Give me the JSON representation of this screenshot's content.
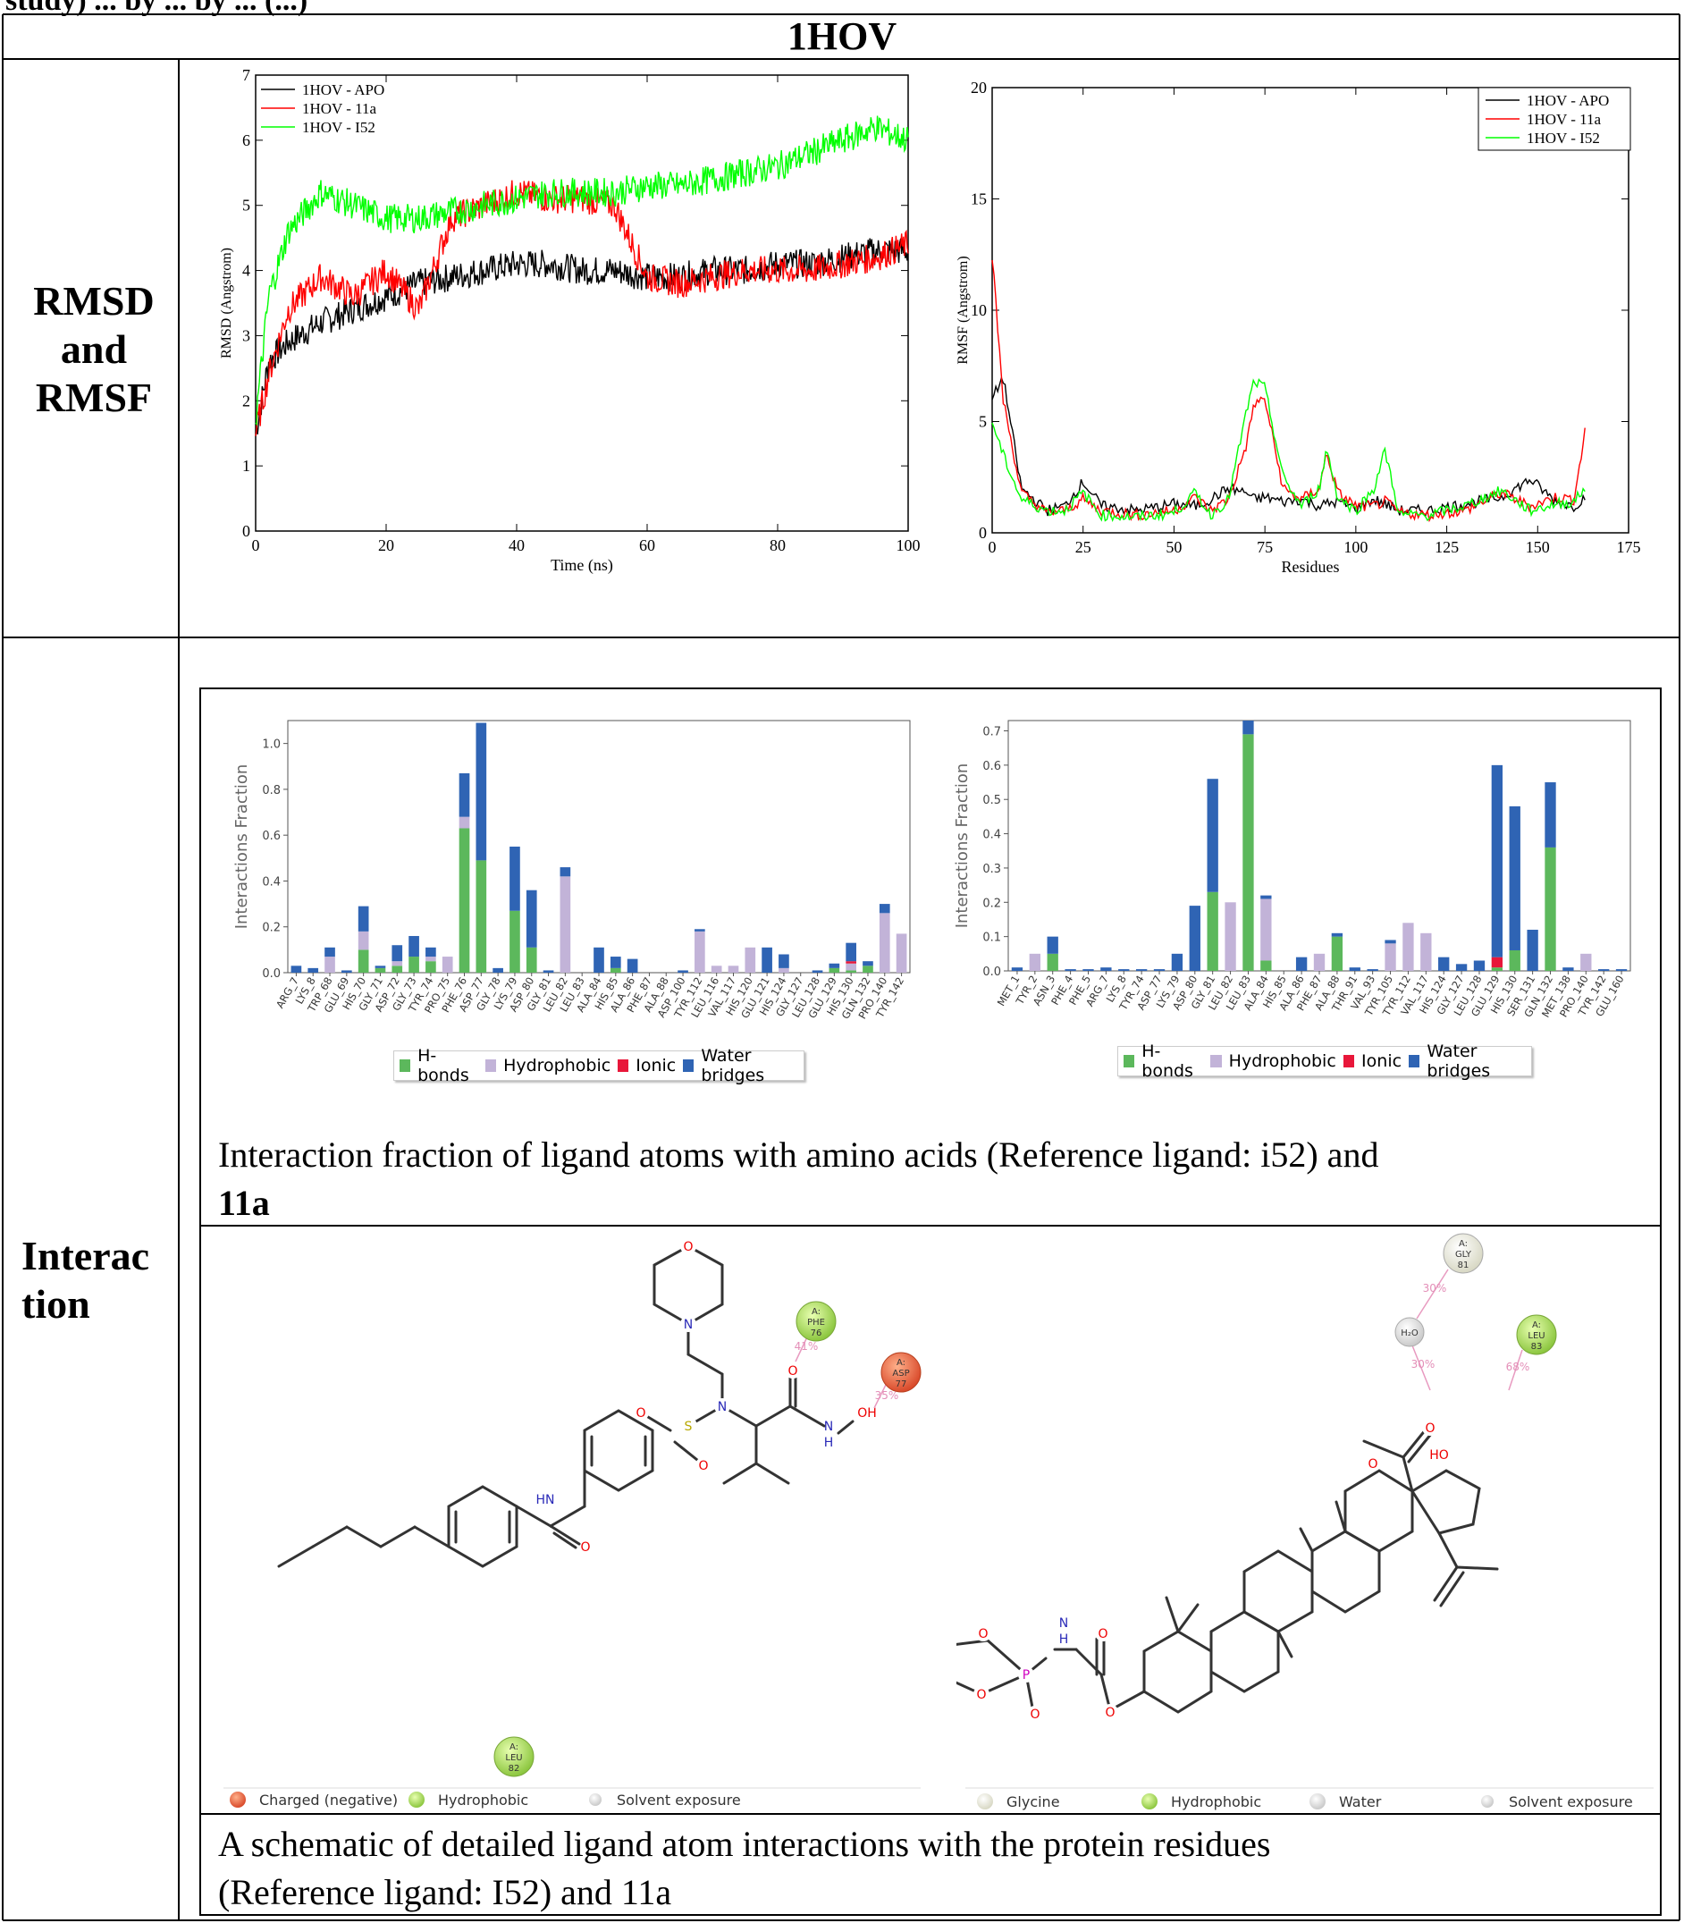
{
  "top_fragment": "study) ... by ... by ... (...)",
  "table": {
    "header": "1HOV",
    "row1_label": "RMSD\nand\nRMSF",
    "row1_label_lines": [
      "RMSD",
      "and",
      "RMSF"
    ],
    "row2_label_lines": [
      "Interac",
      "tion"
    ]
  },
  "rmsd_chart": {
    "type": "line",
    "xlabel": "Time (ns)",
    "ylabel": "RMSD (Angstrom)",
    "xlim": [
      0,
      100
    ],
    "ylim": [
      0,
      7
    ],
    "xticks": [
      0,
      20,
      40,
      60,
      80,
      100
    ],
    "yticks": [
      0,
      1,
      2,
      3,
      4,
      5,
      6,
      7
    ],
    "legend": [
      "1HOV - APO",
      "1HOV - 11a",
      "1HOV - I52"
    ],
    "legend_position": "top-left",
    "series_colors": [
      "#000000",
      "#ff0000",
      "#00ff00"
    ]
  },
  "rmsf_chart": {
    "type": "line",
    "xlabel": "Residues",
    "ylabel": "RMSF (Angstrom)",
    "xlim": [
      0,
      175
    ],
    "ylim": [
      0,
      20
    ],
    "xticks": [
      0,
      25,
      50,
      75,
      100,
      125,
      150,
      175
    ],
    "yticks": [
      0,
      5,
      10,
      15,
      20
    ],
    "legend": [
      "1HOV - APO",
      "1HOV - 11a",
      "1HOV - I52"
    ],
    "legend_position": "top-right",
    "series_colors": [
      "#000000",
      "#ff0000",
      "#00ff00"
    ]
  },
  "chart_data": [
    {
      "type": "line",
      "xlabel": "Time (ns)",
      "ylabel": "RMSD (Angstrom)",
      "xlim": [
        0,
        100
      ],
      "ylim": [
        0,
        7
      ],
      "x": [
        0,
        2,
        5,
        10,
        15,
        20,
        25,
        30,
        35,
        40,
        45,
        50,
        55,
        60,
        65,
        70,
        75,
        80,
        85,
        90,
        95,
        100
      ],
      "series": [
        {
          "name": "1HOV - APO",
          "color": "#000000",
          "values": [
            1.5,
            2.6,
            2.9,
            3.2,
            3.4,
            3.6,
            3.8,
            3.9,
            4.0,
            4.1,
            4.1,
            4.0,
            4.0,
            3.9,
            3.9,
            4.0,
            4.0,
            4.1,
            4.1,
            4.2,
            4.3,
            4.3
          ]
        },
        {
          "name": "1HOV - 11a",
          "color": "#ff0000",
          "values": [
            1.5,
            2.4,
            3.4,
            3.9,
            3.6,
            4.0,
            3.4,
            4.8,
            5.0,
            5.2,
            5.1,
            5.1,
            5.0,
            3.9,
            3.8,
            3.9,
            4.0,
            4.0,
            4.0,
            4.1,
            4.2,
            4.4
          ]
        },
        {
          "name": "1HOV - I52",
          "color": "#00ff00",
          "values": [
            1.7,
            3.6,
            4.6,
            5.2,
            5.0,
            4.8,
            4.8,
            4.9,
            5.0,
            5.1,
            5.2,
            5.2,
            5.2,
            5.3,
            5.3,
            5.4,
            5.5,
            5.6,
            5.8,
            6.0,
            6.2,
            6.0
          ]
        }
      ]
    },
    {
      "type": "line",
      "xlabel": "Residues",
      "ylabel": "RMSF (Angstrom)",
      "xlim": [
        0,
        175
      ],
      "ylim": [
        0,
        20
      ],
      "x": [
        0,
        3,
        8,
        15,
        20,
        25,
        30,
        40,
        50,
        56,
        60,
        65,
        70,
        72,
        75,
        80,
        85,
        90,
        92,
        95,
        100,
        105,
        108,
        112,
        120,
        130,
        140,
        148,
        155,
        160,
        163
      ],
      "series": [
        {
          "name": "1HOV - APO",
          "color": "#000000",
          "values": [
            6.0,
            7.0,
            2.0,
            1.0,
            1.2,
            2.3,
            1.2,
            1.0,
            1.3,
            1.2,
            1.5,
            2.0,
            1.8,
            1.5,
            1.6,
            1.4,
            1.5,
            1.2,
            1.3,
            1.4,
            1.1,
            1.5,
            1.3,
            1.0,
            1.0,
            1.3,
            1.6,
            2.4,
            1.4,
            1.2,
            1.6
          ]
        },
        {
          "name": "1HOV - 11a",
          "color": "#ff0000",
          "values": [
            12.5,
            6.0,
            1.8,
            0.9,
            1.0,
            1.5,
            1.0,
            0.8,
            1.0,
            1.6,
            1.0,
            1.5,
            4.0,
            5.8,
            6.0,
            2.0,
            1.5,
            2.0,
            3.6,
            1.8,
            1.2,
            1.2,
            1.4,
            0.9,
            0.8,
            1.0,
            1.8,
            1.2,
            1.6,
            1.5,
            4.5
          ]
        },
        {
          "name": "1HOV - I52",
          "color": "#00ff00",
          "values": [
            5.0,
            3.5,
            1.5,
            1.0,
            1.0,
            1.8,
            0.8,
            0.7,
            0.9,
            1.8,
            0.8,
            1.5,
            5.5,
            6.8,
            6.5,
            2.5,
            1.2,
            2.0,
            3.8,
            1.6,
            1.0,
            2.0,
            3.7,
            0.8,
            0.8,
            1.2,
            1.9,
            1.0,
            1.3,
            1.4,
            2.0
          ]
        }
      ]
    },
    {
      "type": "bar",
      "ylabel": "Interactions Fraction",
      "ylim": [
        0,
        1.1
      ],
      "yticks": [
        "0.0",
        "0.2",
        "0.4",
        "0.6",
        "0.8",
        "1.0"
      ],
      "categories": [
        "ARG_7",
        "LYS_8",
        "TRP_68",
        "GLU_69",
        "HIS_70",
        "GLY_71",
        "ASP_72",
        "GLY_73",
        "TYR_74",
        "PRO_75",
        "PHE_76",
        "ASP_77",
        "GLY_78",
        "LYS_79",
        "ASP_80",
        "GLY_81",
        "LEU_82",
        "LEU_83",
        "ALA_84",
        "HIS_85",
        "ALA_86",
        "PHE_87",
        "ALA_88",
        "ASP_100",
        "TYR_112",
        "LEU_116",
        "VAL_117",
        "HIS_120",
        "GLU_121",
        "HIS_124",
        "GLY_127",
        "LEU_128",
        "GLU_129",
        "HIS_130",
        "GLN_132",
        "PRO_140",
        "TYR_142"
      ],
      "series": [
        {
          "name": "H-bonds",
          "color": "#5cb85c",
          "values": [
            0,
            0,
            0,
            0,
            0.1,
            0.02,
            0.03,
            0.07,
            0.05,
            0,
            0.63,
            0.49,
            0,
            0.27,
            0.11,
            0,
            0,
            0,
            0,
            0.02,
            0,
            0,
            0,
            0,
            0,
            0,
            0,
            0,
            0,
            0,
            0,
            0,
            0.02,
            0.01,
            0.03,
            0,
            0
          ]
        },
        {
          "name": "Hydrophobic",
          "color": "#c2b3d8",
          "values": [
            0,
            0,
            0.07,
            0,
            0.08,
            0,
            0.02,
            0,
            0.02,
            0.07,
            0.05,
            0,
            0,
            0,
            0,
            0,
            0.42,
            0,
            0,
            0,
            0,
            0,
            0,
            0,
            0.18,
            0.03,
            0.03,
            0.11,
            0,
            0.02,
            0,
            0,
            0,
            0.03,
            0,
            0.26,
            0.17
          ]
        },
        {
          "name": "Ionic",
          "color": "#e8173a",
          "values": [
            0,
            0,
            0,
            0,
            0,
            0,
            0,
            0,
            0,
            0,
            0,
            0,
            0,
            0,
            0,
            0,
            0,
            0,
            0,
            0,
            0,
            0,
            0,
            0,
            0,
            0,
            0,
            0,
            0,
            0,
            0,
            0,
            0,
            0.01,
            0,
            0,
            0
          ]
        },
        {
          "name": "Water bridges",
          "color": "#2f64b4",
          "values": [
            0.03,
            0.02,
            0.04,
            0.01,
            0.11,
            0.01,
            0.07,
            0.09,
            0.04,
            0,
            0.19,
            0.6,
            0.02,
            0.28,
            0.25,
            0.01,
            0.04,
            0,
            0.11,
            0.05,
            0.06,
            0,
            0,
            0.01,
            0.01,
            0,
            0,
            0,
            0.11,
            0.06,
            0,
            0.01,
            0.02,
            0.08,
            0.02,
            0.04,
            0
          ]
        }
      ],
      "legend": [
        "H-bonds",
        "Hydrophobic",
        "Ionic",
        "Water bridges"
      ]
    },
    {
      "type": "bar",
      "ylabel": "Interactions Fraction",
      "ylim": [
        0,
        0.73
      ],
      "yticks": [
        "0.0",
        "0.1",
        "0.2",
        "0.3",
        "0.4",
        "0.5",
        "0.6",
        "0.7"
      ],
      "categories": [
        "MET_1",
        "TYR_2",
        "ASN_3",
        "PHE_4",
        "PHE_5",
        "ARG_7",
        "LYS_8",
        "TYR_74",
        "ASP_77",
        "LYS_79",
        "ASP_80",
        "GLY_81",
        "LEU_82",
        "LEU_83",
        "ALA_84",
        "HIS_85",
        "ALA_86",
        "PHE_87",
        "ALA_88",
        "THR_91",
        "VAL_93",
        "TYR_105",
        "TYR_112",
        "VAL_117",
        "HIS_124",
        "GLY_127",
        "LEU_128",
        "GLU_129",
        "HIS_130",
        "SER_131",
        "GLN_132",
        "MET_138",
        "PRO_140",
        "TYR_142",
        "GLU_160"
      ],
      "series": [
        {
          "name": "H-bonds",
          "color": "#5cb85c",
          "values": [
            0,
            0,
            0.05,
            0,
            0,
            0,
            0,
            0,
            0,
            0,
            0,
            0.23,
            0,
            0.69,
            0.03,
            0,
            0,
            0,
            0.1,
            0,
            0,
            0,
            0,
            0,
            0,
            0,
            0,
            0.01,
            0.06,
            0,
            0.36,
            0,
            0,
            0,
            0
          ]
        },
        {
          "name": "Hydrophobic",
          "color": "#c2b3d8",
          "values": [
            0,
            0.05,
            0,
            0,
            0,
            0,
            0,
            0,
            0,
            0,
            0,
            0,
            0.2,
            0,
            0.18,
            0,
            0,
            0.05,
            0,
            0,
            0,
            0.08,
            0.14,
            0.11,
            0,
            0,
            0,
            0,
            0,
            0,
            0,
            0,
            0.05,
            0,
            0
          ]
        },
        {
          "name": "Ionic",
          "color": "#e8173a",
          "values": [
            0,
            0,
            0,
            0,
            0,
            0,
            0,
            0,
            0,
            0,
            0,
            0,
            0,
            0,
            0,
            0,
            0,
            0,
            0,
            0,
            0,
            0,
            0,
            0,
            0,
            0,
            0,
            0.03,
            0,
            0,
            0,
            0,
            0,
            0,
            0
          ]
        },
        {
          "name": "Water bridges",
          "color": "#2f64b4",
          "values": [
            0.01,
            0,
            0.05,
            0.005,
            0.005,
            0.01,
            0.005,
            0.005,
            0.005,
            0.05,
            0.19,
            0.33,
            0,
            0.04,
            0.01,
            0,
            0.04,
            0,
            0.01,
            0.01,
            0.005,
            0.01,
            0,
            0,
            0.04,
            0.02,
            0.03,
            0.56,
            0.42,
            0.12,
            0.19,
            0.01,
            0,
            0.005,
            0.005
          ]
        }
      ],
      "legend": [
        "H-bonds",
        "Hydrophobic",
        "Ionic",
        "Water bridges"
      ]
    }
  ],
  "caption_fraction": {
    "text": "Interaction fraction of ligand atoms with amino acids (Reference ligand: i52) and",
    "bold": "11a"
  },
  "diagram_left": {
    "residues": [
      {
        "chain": "A:",
        "name": "PHE",
        "num": "76",
        "kind": "hydrophobic"
      },
      {
        "chain": "A:",
        "name": "ASP",
        "num": "77",
        "kind": "charged"
      },
      {
        "chain": "A:",
        "name": "LEU",
        "num": "82",
        "kind": "hydrophobic"
      }
    ],
    "percents": [
      "41%",
      "35%"
    ],
    "atoms": [
      "O",
      "N",
      "S",
      "O",
      "O",
      "N",
      "O",
      "N",
      "H",
      "OH",
      "HN",
      "O"
    ],
    "legend": [
      "Charged (negative)",
      "Hydrophobic",
      "Solvent exposure"
    ]
  },
  "diagram_right": {
    "residues": [
      {
        "chain": "A:",
        "name": "GLY",
        "num": "81",
        "kind": "glycine"
      },
      {
        "chain": "A:",
        "name": "LEU",
        "num": "83",
        "kind": "hydrophobic"
      }
    ],
    "water": "H₂O",
    "percents": [
      "30%",
      "30%",
      "68%"
    ],
    "atoms": [
      "HO",
      "O",
      "O",
      "N",
      "H",
      "O",
      "P",
      "O",
      "O",
      "O",
      "O"
    ],
    "legend": [
      "Glycine",
      "Hydrophobic",
      "Water",
      "Solvent exposure"
    ]
  },
  "caption_schematic": {
    "line1": "A schematic of detailed ligand atom interactions with the protein residues",
    "line2": "(Reference ligand: I52) and 11a"
  }
}
